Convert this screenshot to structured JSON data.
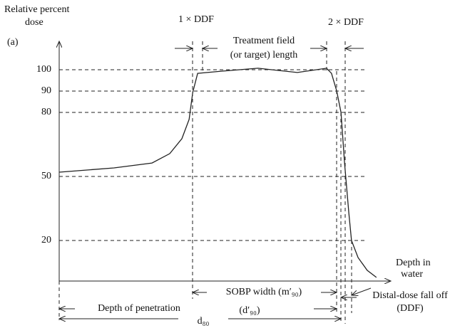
{
  "chart_data": {
    "type": "line",
    "label": "(a)",
    "ylabel": [
      "Relative percent",
      "dose"
    ],
    "xlabel": [
      "Depth in",
      "water"
    ],
    "x": [
      0,
      16.7,
      28.3,
      33.7,
      37.4,
      39.6,
      40.7,
      42.2,
      49.3,
      60.6,
      72.6,
      81.5,
      83,
      84.6,
      85.9,
      87,
      88.3,
      89.1,
      91.1,
      93.9,
      96.7
    ],
    "series": [
      {
        "color": "#222222",
        "values": [
          52,
          54,
          56.3,
          60.7,
          67.7,
          76.7,
          89.3,
          98.3,
          99.3,
          100.7,
          98.7,
          100.7,
          98.3,
          90,
          80,
          56,
          32.7,
          20,
          12,
          6,
          2.7
        ]
      }
    ],
    "xlim": [
      0,
      100
    ],
    "ylim": [
      0,
      100
    ],
    "yticks": [
      20,
      50,
      80,
      90,
      100
    ],
    "grid": true,
    "annotations": [
      "1 × DDF",
      "2 × DDF",
      "Treatment field",
      "(or target) length",
      "SOBP width (m′₉₀)",
      "Depth of penetration",
      "(d′₉₀)",
      "d₈₀",
      "Distal-dose fall off",
      "(DDF)"
    ]
  }
}
